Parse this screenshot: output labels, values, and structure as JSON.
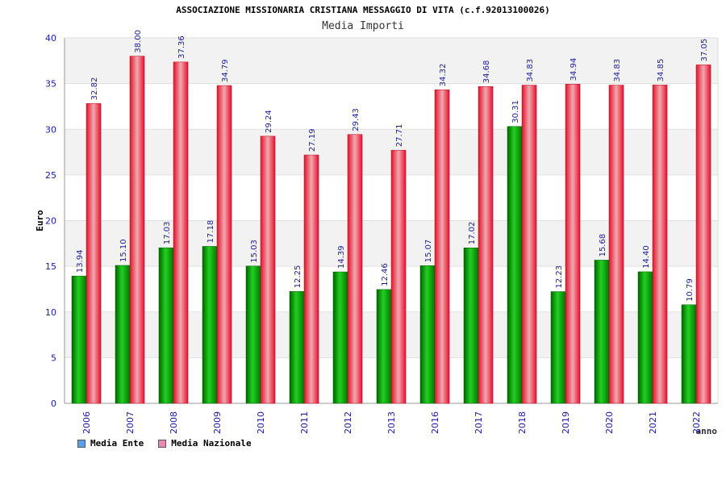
{
  "chart_data": {
    "type": "bar",
    "title": "ASSOCIAZIONE MISSIONARIA CRISTIANA MESSAGGIO DI VITA (c.f.92013100026)",
    "subtitle": "Media Importi",
    "xlabel": "anno",
    "ylabel": "Euro",
    "ylim": [
      0,
      40
    ],
    "yticks": [
      0,
      5,
      10,
      15,
      20,
      25,
      30,
      35,
      40
    ],
    "grid": true,
    "legend_position": "bottom-left",
    "categories": [
      "2006",
      "2007",
      "2008",
      "2009",
      "2010",
      "2011",
      "2012",
      "2013",
      "2016",
      "2017",
      "2018",
      "2019",
      "2020",
      "2021",
      "2022"
    ],
    "series": [
      {
        "name": "Media Ente",
        "color": "#00b400",
        "legend_color": "#5aa0e6",
        "values": [
          13.94,
          15.1,
          17.03,
          17.18,
          15.03,
          12.25,
          14.39,
          12.46,
          15.07,
          17.02,
          30.31,
          12.23,
          15.68,
          14.4,
          10.79
        ],
        "labels": [
          "13.94",
          "15.10",
          "17.03",
          "17.18",
          "15.03",
          "12.25",
          "14.39",
          "12.46",
          "15.07",
          "17.02",
          "30.31",
          "12.23",
          "15.68",
          "14.40",
          "10.79"
        ]
      },
      {
        "name": "Media Nazionale",
        "color": "#e8202a",
        "legend_color": "#e68cb4",
        "values": [
          32.82,
          38.0,
          37.36,
          34.79,
          29.24,
          27.19,
          29.43,
          27.71,
          34.32,
          34.68,
          34.83,
          34.94,
          34.83,
          34.85,
          37.05
        ],
        "labels": [
          "32.82",
          "38.00",
          "37.36",
          "34.79",
          "29.24",
          "27.19",
          "29.43",
          "27.71",
          "34.32",
          "34.68",
          "34.83",
          "34.94",
          "34.83",
          "34.85",
          "37.05"
        ]
      }
    ]
  }
}
